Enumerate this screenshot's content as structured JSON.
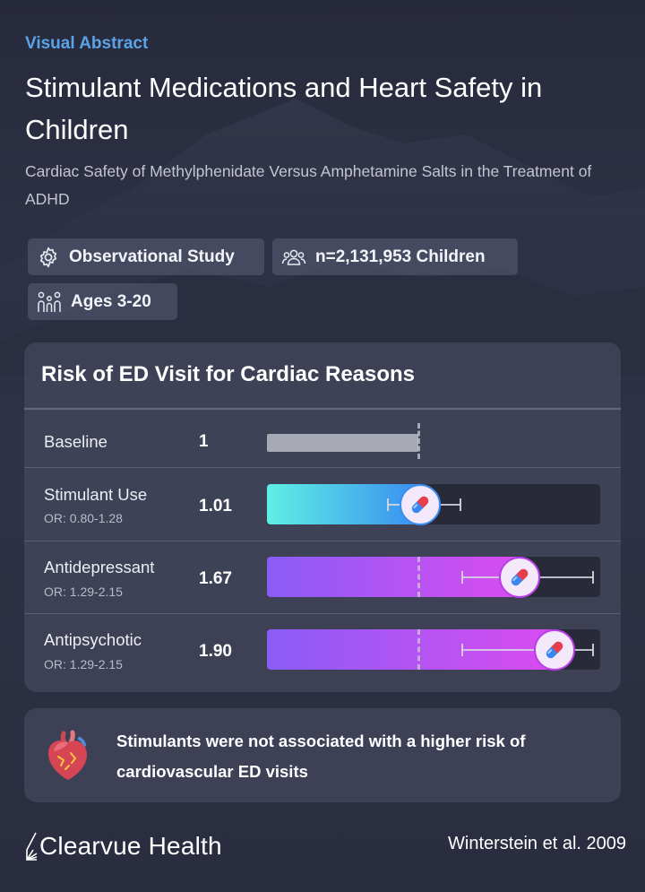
{
  "header": {
    "eyebrow": "Visual Abstract",
    "title": "Stimulant Medications and Heart Safety in Children",
    "subtitle": "Cardiac Safety of Methylphenidate Versus Amphetamine Salts in the Treatment of ADHD"
  },
  "chips": [
    {
      "label": "Observational Study",
      "icon": "gear-icon"
    },
    {
      "label": "n=2,131,953 Children",
      "icon": "people-group-icon"
    },
    {
      "label": "Ages 3-20",
      "icon": "family-icon"
    }
  ],
  "risk_card": {
    "title": "Risk of ED Visit for Cardiac Reasons",
    "reference_value": 1,
    "axis_max": 2.2,
    "rows": [
      {
        "label": "Baseline",
        "or_text": "",
        "value_text": "1",
        "value": 1.0,
        "ci": null,
        "style": "baseline"
      },
      {
        "label": "Stimulant Use",
        "or_text": "OR: 0.80-1.28",
        "value_text": "1.01",
        "value": 1.01,
        "ci": [
          0.8,
          1.28
        ],
        "style": "cyan"
      },
      {
        "label": "Antidepressant",
        "or_text": "OR: 1.29-2.15",
        "value_text": "1.67",
        "value": 1.67,
        "ci": [
          1.29,
          2.15
        ],
        "style": "purple"
      },
      {
        "label": "Antipsychotic",
        "or_text": "OR: 1.29-2.15",
        "value_text": "1.90",
        "value": 1.9,
        "ci": [
          1.29,
          2.15
        ],
        "style": "purple"
      }
    ]
  },
  "conclusion": {
    "text": "Stimulants were not associated with a higher risk of cardiovascular ED visits",
    "icon": "anatomical-heart-icon"
  },
  "footer": {
    "brand": "Clearvue Health",
    "citation": "Winterstein et al. 2009"
  },
  "colors": {
    "eyebrow": "#5aa3e6",
    "cyan_start": "#5ef0e4",
    "cyan_end": "#3a8ef0",
    "purple_start": "#8a5cf6",
    "purple_end": "#d94cf0",
    "baseline_bar": "#a7a9b4"
  }
}
